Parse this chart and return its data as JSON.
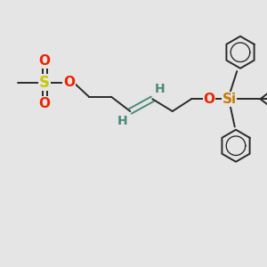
{
  "background_color": "#e5e5e5",
  "bond_color": "#2a2a2a",
  "double_bond_color": "#4a8a7a",
  "S_color": "#c8c800",
  "O_color": "#ee2200",
  "Si_color": "#c87800",
  "H_color": "#4a8a7a",
  "line_width": 1.4,
  "fig_width": 3.0,
  "fig_height": 3.0,
  "dpi": 100,
  "xlim": [
    0,
    12
  ],
  "ylim": [
    0,
    10
  ]
}
